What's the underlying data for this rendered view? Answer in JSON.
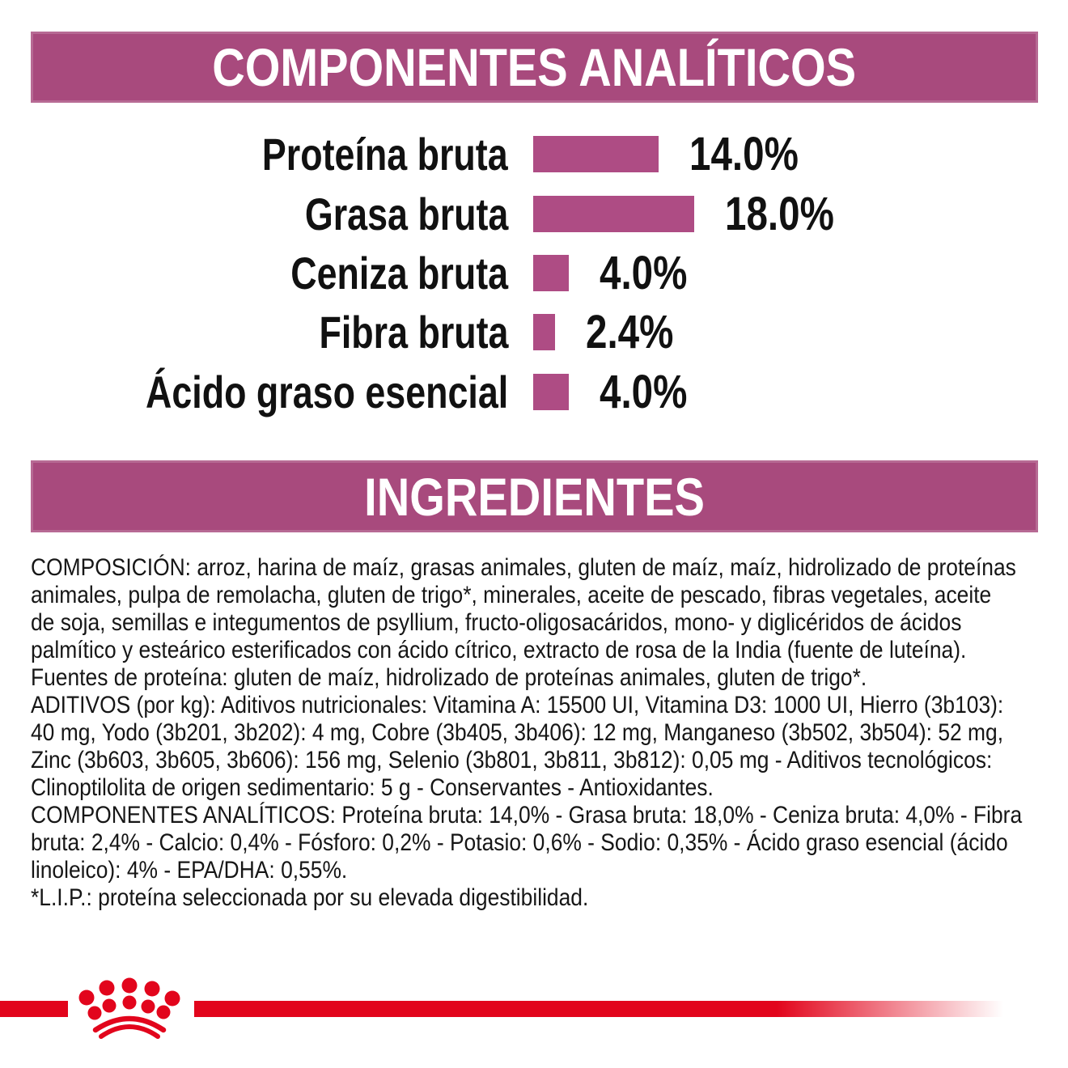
{
  "colors": {
    "banner_magenta": "#a84a7d",
    "bar_magenta": "#ae4c84",
    "logo_red": "#e2051c",
    "text": "#1a1a1a"
  },
  "analytical_section": {
    "title": "COMPONENTES ANALÍTICOS"
  },
  "chart_data": {
    "type": "bar",
    "orientation": "horizontal",
    "categories": [
      "Proteína bruta",
      "Grasa bruta",
      "Ceniza bruta",
      "Fibra bruta",
      "Ácido graso esencial"
    ],
    "values": [
      14.0,
      18.0,
      4.0,
      2.4,
      4.0
    ],
    "value_labels": [
      "14.0%",
      "18.0%",
      "4.0%",
      "2.4%",
      "4.0%"
    ],
    "unit": "%",
    "xlim": [
      0,
      20
    ],
    "grid": false,
    "legend": false,
    "bar_color": "#ae4c84"
  },
  "ingredients_section": {
    "title": "INGREDIENTES"
  },
  "ingredients_text": {
    "lines": [
      "COMPOSICIÓN: arroz, harina de maíz, grasas animales, gluten de maíz, maíz, hidrolizado de proteínas",
      "animales, pulpa de remolacha, gluten de trigo*, minerales, aceite de pescado, fibras vegetales, aceite",
      "de soja, semillas e integumentos de psyllium, fructo-oligosacáridos, mono- y diglicéridos de ácidos",
      "palmítico y esteárico esterificados con ácido cítrico, extracto de rosa de la India (fuente de luteína).",
      "Fuentes de proteína: gluten de maíz, hidrolizado de proteínas animales, gluten de trigo*.",
      "ADITIVOS (por kg): Aditivos nutricionales: Vitamina A: 15500 UI, Vitamina D3: 1000 UI, Hierro (3b103):",
      "40 mg, Yodo (3b201, 3b202): 4 mg, Cobre (3b405, 3b406): 12 mg, Manganeso (3b502, 3b504): 52 mg,",
      "Zinc (3b603, 3b605, 3b606): 156 mg, Selenio (3b801, 3b811, 3b812): 0,05 mg - Aditivos tecnológicos:",
      "Clinoptilolita de origen sedimentario: 5 g - Conservantes - Antioxidantes.",
      "COMPONENTES ANALÍTICOS: Proteína bruta: 14,0% - Grasa bruta: 18,0% - Ceniza bruta: 4,0% - Fibra",
      "bruta: 2,4% - Calcio: 0,4% - Fósforo: 0,2% - Potasio: 0,6% - Sodio: 0,35% - Ácido graso esencial (ácido",
      "linoleico): 4% - EPA/DHA: 0,55%.",
      "*L.I.P.: proteína seleccionada por su elevada digestibilidad."
    ]
  },
  "logo": {
    "name": "royal-canin-crown"
  }
}
